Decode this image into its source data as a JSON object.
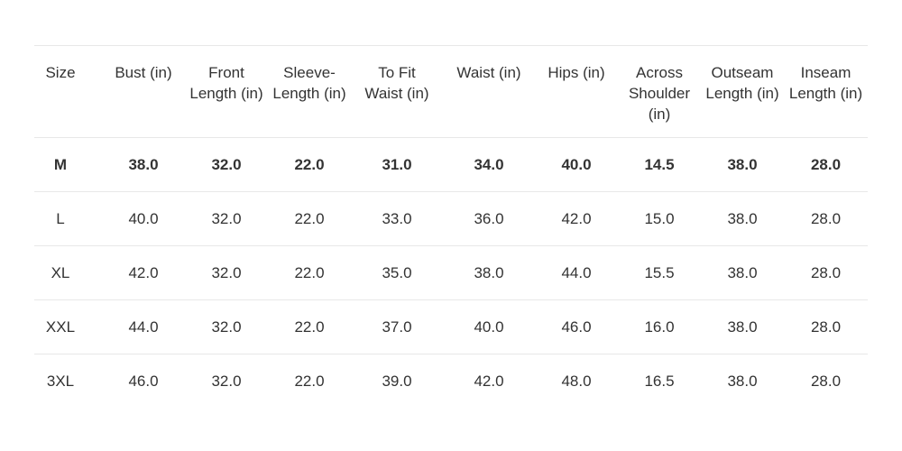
{
  "table": {
    "header": [
      [
        "Size"
      ],
      [
        "Bust (in)"
      ],
      [
        "Front",
        "Length (in)"
      ],
      [
        "Sleeve-",
        "Length (in)"
      ],
      [
        "To Fit",
        "Waist (in)"
      ],
      [
        "Waist (in)"
      ],
      [
        "Hips (in)"
      ],
      [
        "Across",
        "Shoulder",
        "(in)"
      ],
      [
        "Outseam",
        "Length (in)"
      ],
      [
        "Inseam",
        "Length (in)"
      ]
    ],
    "rows": [
      [
        "M",
        "38.0",
        "32.0",
        "22.0",
        "31.0",
        "34.0",
        "40.0",
        "14.5",
        "38.0",
        "28.0"
      ],
      [
        "L",
        "40.0",
        "32.0",
        "22.0",
        "33.0",
        "36.0",
        "42.0",
        "15.0",
        "38.0",
        "28.0"
      ],
      [
        "XL",
        "42.0",
        "32.0",
        "22.0",
        "35.0",
        "38.0",
        "44.0",
        "15.5",
        "38.0",
        "28.0"
      ],
      [
        "XXL",
        "44.0",
        "32.0",
        "22.0",
        "37.0",
        "40.0",
        "46.0",
        "16.0",
        "38.0",
        "28.0"
      ],
      [
        "3XL",
        "46.0",
        "32.0",
        "22.0",
        "39.0",
        "42.0",
        "48.0",
        "16.5",
        "38.0",
        "28.0"
      ]
    ]
  }
}
